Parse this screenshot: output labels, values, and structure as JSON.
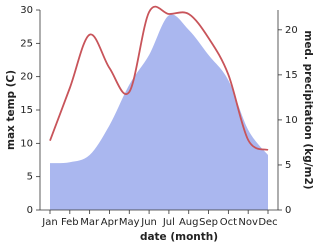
{
  "chart_data": {
    "type": "line",
    "x_label": "date (month)",
    "y_label": "max temp (C)",
    "y2_label": "med. precipitation (kg/m2)",
    "categories": [
      "Jan",
      "Feb",
      "Mar",
      "Apr",
      "May",
      "Jun",
      "Jul",
      "Aug",
      "Sep",
      "Oct",
      "Nov",
      "Dec"
    ],
    "series": [
      {
        "type": "area",
        "axis": "y2",
        "color": "#aab7ef",
        "values": [
          5.2,
          5.3,
          6.1,
          9.4,
          13.9,
          17.2,
          21.6,
          20.0,
          17.2,
          14.4,
          8.9,
          6.1
        ]
      },
      {
        "type": "line",
        "color": "#c8545a",
        "values": [
          10.4,
          18.3,
          26.3,
          21.3,
          17.7,
          29.7,
          29.4,
          29.4,
          25.8,
          20.3,
          10.5,
          9.0
        ]
      }
    ],
    "ylim": [
      0,
      30
    ],
    "yticks": [
      0,
      5,
      10,
      15,
      20,
      25,
      30
    ],
    "y2lim": [
      0,
      22.2
    ],
    "y2ticks": [
      0,
      5,
      10,
      15,
      20
    ]
  }
}
